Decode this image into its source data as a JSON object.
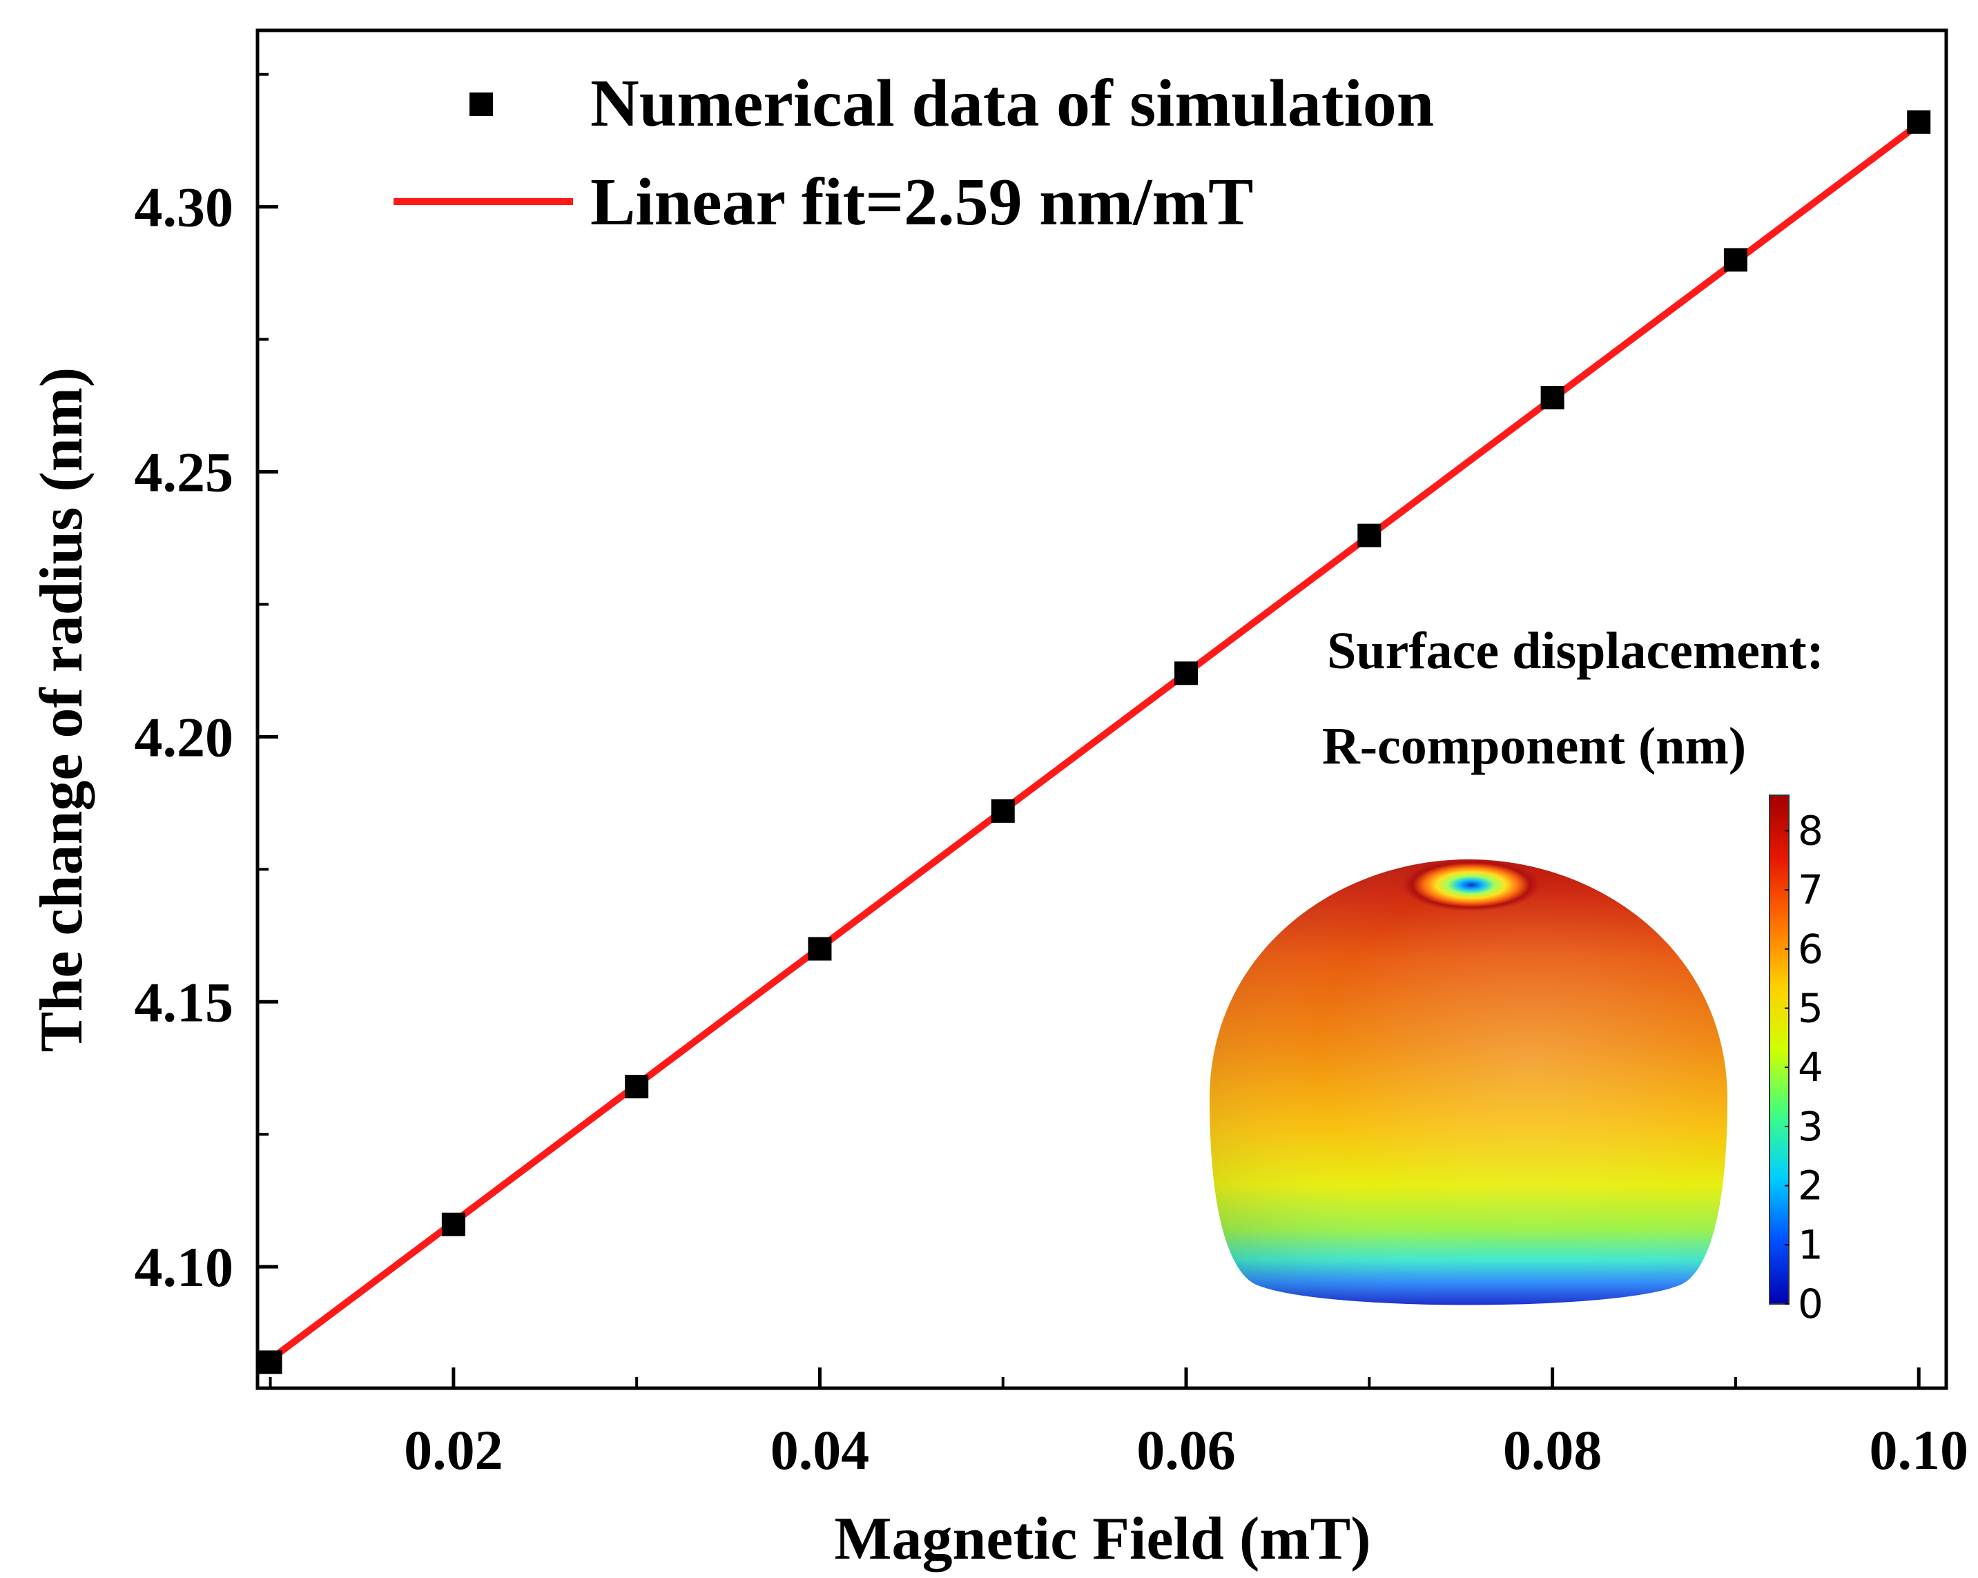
{
  "chart_data": {
    "type": "scatter",
    "xlabel": "Magnetic Field (mT)",
    "ylabel": "The change of radius (nm)",
    "xlim": [
      0.0093,
      0.1015
    ],
    "ylim": [
      4.0771,
      4.3333
    ],
    "xticks": [
      0.02,
      0.04,
      0.06,
      0.08,
      0.1
    ],
    "xtick_labels": [
      "0.02",
      "0.04",
      "0.06",
      "0.08",
      "0.10"
    ],
    "yticks": [
      4.1,
      4.15,
      4.2,
      4.25,
      4.3
    ],
    "ytick_labels": [
      "4.10",
      "4.15",
      "4.20",
      "4.25",
      "4.30"
    ],
    "series": [
      {
        "name": "Numerical data of simulation",
        "marker": "square",
        "color": "#000000",
        "x": [
          0.01,
          0.02,
          0.03,
          0.04,
          0.05,
          0.06,
          0.07,
          0.08,
          0.09,
          0.1
        ],
        "y": [
          4.082,
          4.108,
          4.134,
          4.16,
          4.186,
          4.212,
          4.238,
          4.264,
          4.29,
          4.316
        ]
      },
      {
        "name": "Linear fit=2.59 nm/mT",
        "type": "line",
        "color": "#ff1a1a",
        "x": [
          0.01,
          0.1
        ],
        "y": [
          4.0825,
          4.3156
        ]
      }
    ],
    "legend_position": "top",
    "grid": false,
    "inset": {
      "title_line1": "Surface displacement:",
      "title_line2": "R-component (nm)",
      "colorbar_ticks": [
        "0",
        "1",
        "2",
        "3",
        "4",
        "5",
        "6",
        "7",
        "8"
      ],
      "colorbar_range": [
        0,
        8.6
      ],
      "colormap": [
        "#0000b0",
        "#0050ff",
        "#00d0ff",
        "#40ff80",
        "#d0ff00",
        "#ffd000",
        "#ff7000",
        "#e81800",
        "#a00000"
      ]
    }
  }
}
